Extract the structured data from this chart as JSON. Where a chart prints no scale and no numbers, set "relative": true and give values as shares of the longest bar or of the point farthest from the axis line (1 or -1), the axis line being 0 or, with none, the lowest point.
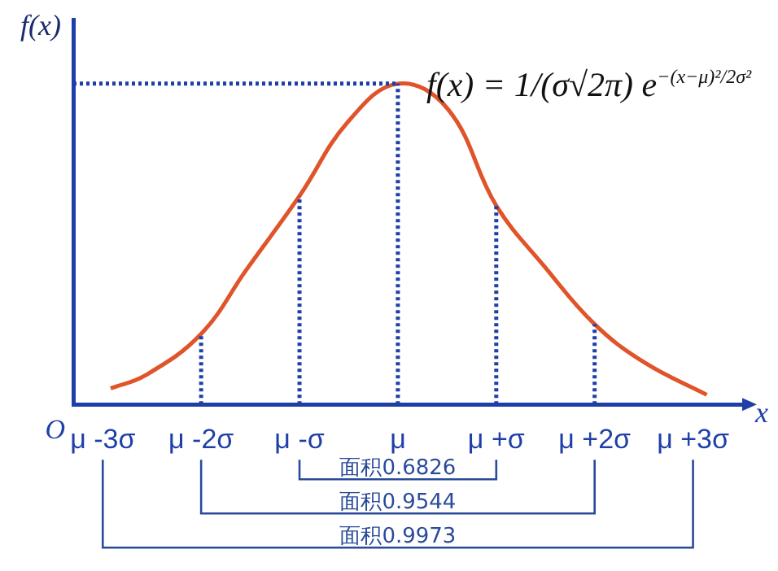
{
  "chart_data": {
    "type": "line",
    "relative": true,
    "xlabel": "x",
    "ylabel": "f(x)",
    "legend": false,
    "grid": false,
    "marker": "none",
    "line_style": "solid",
    "x": [
      -2.92,
      -2.57,
      -2.0,
      -1.54,
      -1.0,
      -0.51,
      0,
      0.51,
      1.0,
      1.49,
      2.0,
      2.51,
      3.14
    ],
    "series": [
      {
        "color": "#e0542a",
        "values": [
          0.05,
          0.09,
          0.22,
          0.42,
          0.65,
          0.88,
          1,
          0.92,
          0.62,
          0.43,
          0.25,
          0.13,
          0.03
        ]
      }
    ],
    "xlim": [
      -3.3,
      3.5
    ],
    "xticks": [
      {
        "value": -3,
        "label": "μ -3σ"
      },
      {
        "value": -2,
        "label": "μ -2σ"
      },
      {
        "value": -1,
        "label": "μ -σ"
      },
      {
        "value": 0,
        "label": "μ"
      },
      {
        "value": 1,
        "label": "μ +σ"
      },
      {
        "value": 2,
        "label": "μ +2σ"
      },
      {
        "value": 3,
        "label": "μ +3σ"
      }
    ],
    "ref_lines": [
      {
        "axis": "x",
        "value": -2,
        "color": "#1f3fa8",
        "line_style": "dotted"
      },
      {
        "axis": "x",
        "value": -1,
        "color": "#1f3fa8",
        "line_style": "dotted"
      },
      {
        "axis": "x",
        "value": 0,
        "color": "#1f3fa8",
        "line_style": "dotted"
      },
      {
        "axis": "x",
        "value": 1,
        "color": "#1f3fa8",
        "line_style": "dotted"
      },
      {
        "axis": "x",
        "value": 2,
        "color": "#1f3fa8",
        "line_style": "dotted"
      },
      {
        "axis": "y",
        "value": 1,
        "color": "#1f3fa8",
        "line_style": "dotted"
      }
    ],
    "annotations": [
      "O",
      "f(x) = 1/(σ√2π) e$^{−(x−μ)²/2σ²}$",
      "面积0.6826",
      "面积0.9544",
      "面积0.9973"
    ]
  }
}
